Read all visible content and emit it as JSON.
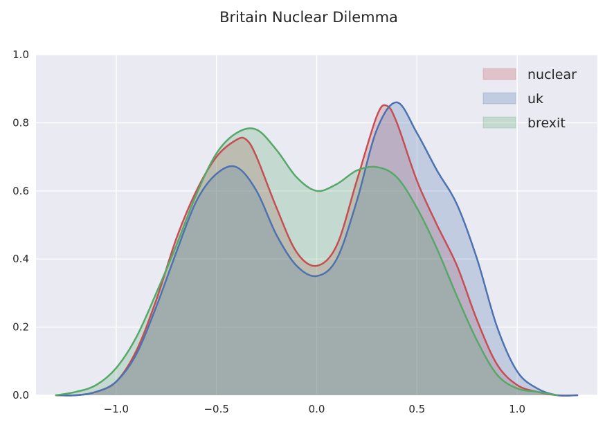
{
  "chart_data": {
    "type": "area",
    "title": "Britain Nuclear Dilemma",
    "xlabel": "",
    "ylabel": "",
    "xlim": [
      -1.4,
      1.4
    ],
    "ylim": [
      0,
      1.0
    ],
    "xticks": [
      -1.0,
      -0.5,
      0.0,
      0.5,
      1.0
    ],
    "xtick_labels": [
      "−1.0",
      "−0.5",
      "0.0",
      "0.5",
      "1.0"
    ],
    "yticks": [
      0.0,
      0.2,
      0.4,
      0.6,
      0.8,
      1.0
    ],
    "ytick_labels": [
      "0.0",
      "0.2",
      "0.4",
      "0.6",
      "0.8",
      "1.0"
    ],
    "grid": true,
    "legend_position": "top-right",
    "series": [
      {
        "name": "nuclear",
        "color": "#c44e52",
        "x": [
          -1.3,
          -1.2,
          -1.1,
          -1.0,
          -0.9,
          -0.8,
          -0.7,
          -0.6,
          -0.5,
          -0.4,
          -0.35,
          -0.3,
          -0.2,
          -0.1,
          0.0,
          0.1,
          0.2,
          0.3,
          0.35,
          0.4,
          0.5,
          0.6,
          0.7,
          0.8,
          0.9,
          1.0,
          1.1,
          1.2,
          1.3
        ],
        "y": [
          0.0,
          0.0,
          0.01,
          0.04,
          0.13,
          0.28,
          0.46,
          0.6,
          0.7,
          0.75,
          0.75,
          0.7,
          0.55,
          0.42,
          0.38,
          0.44,
          0.63,
          0.82,
          0.85,
          0.8,
          0.63,
          0.5,
          0.38,
          0.22,
          0.09,
          0.03,
          0.01,
          0.0,
          0.0
        ]
      },
      {
        "name": "uk",
        "color": "#4c72b0",
        "x": [
          -1.3,
          -1.2,
          -1.1,
          -1.0,
          -0.9,
          -0.8,
          -0.7,
          -0.6,
          -0.5,
          -0.4,
          -0.3,
          -0.2,
          -0.1,
          0.0,
          0.1,
          0.2,
          0.3,
          0.4,
          0.5,
          0.6,
          0.7,
          0.8,
          0.9,
          1.0,
          1.1,
          1.2,
          1.3
        ],
        "y": [
          0.0,
          0.0,
          0.01,
          0.04,
          0.12,
          0.26,
          0.42,
          0.57,
          0.65,
          0.67,
          0.6,
          0.47,
          0.38,
          0.35,
          0.4,
          0.57,
          0.78,
          0.86,
          0.77,
          0.66,
          0.56,
          0.4,
          0.2,
          0.07,
          0.02,
          0.0,
          0.0
        ]
      },
      {
        "name": "brexit",
        "color": "#55a868",
        "x": [
          -1.3,
          -1.2,
          -1.1,
          -1.0,
          -0.9,
          -0.8,
          -0.7,
          -0.6,
          -0.5,
          -0.4,
          -0.3,
          -0.2,
          -0.1,
          0.0,
          0.1,
          0.2,
          0.3,
          0.4,
          0.5,
          0.6,
          0.7,
          0.8,
          0.9,
          1.0,
          1.1,
          1.2
        ],
        "y": [
          0.0,
          0.01,
          0.03,
          0.08,
          0.17,
          0.3,
          0.44,
          0.59,
          0.71,
          0.77,
          0.78,
          0.72,
          0.64,
          0.6,
          0.62,
          0.66,
          0.67,
          0.64,
          0.55,
          0.43,
          0.29,
          0.16,
          0.06,
          0.02,
          0.01,
          0.0
        ]
      }
    ]
  }
}
